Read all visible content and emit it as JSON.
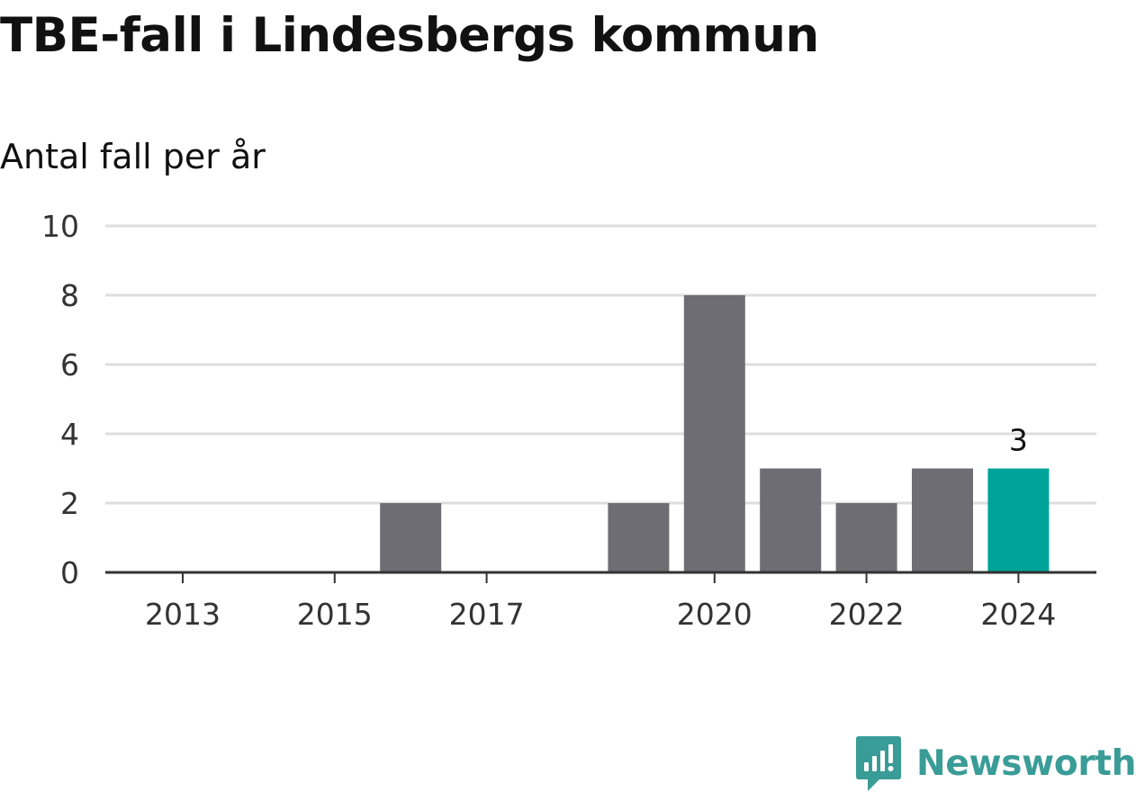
{
  "header": {
    "title": "TBE-fall i Lindesbergs kommun",
    "subtitle": "Antal fall per år"
  },
  "branding": {
    "name": "Newsworthy",
    "icon": "newsworthy-logo-icon",
    "color": "#3a9c97"
  },
  "chart_data": {
    "type": "bar",
    "title": "TBE-fall i Lindesbergs kommun",
    "subtitle": "Antal fall per år",
    "xlabel": "",
    "ylabel": "",
    "categories": [
      "2013",
      "2014",
      "2015",
      "2016",
      "2017",
      "2018",
      "2019",
      "2020",
      "2021",
      "2022",
      "2023",
      "2024"
    ],
    "values": [
      0,
      0,
      0,
      2,
      0,
      0,
      2,
      8,
      3,
      2,
      3,
      3
    ],
    "x_tick_labels": [
      "2013",
      "2015",
      "2017",
      "2020",
      "2022",
      "2024"
    ],
    "y_ticks": [
      0,
      2,
      4,
      6,
      8,
      10
    ],
    "ylim": [
      0,
      10
    ],
    "grid": true,
    "legend": "none",
    "highlight": {
      "category": "2024",
      "label": "3"
    },
    "colors": {
      "bar": "#6e6d73",
      "highlight": "#00a39a",
      "grid": "#dddddd",
      "axis": "#333333",
      "tick_text": "#333333"
    }
  }
}
